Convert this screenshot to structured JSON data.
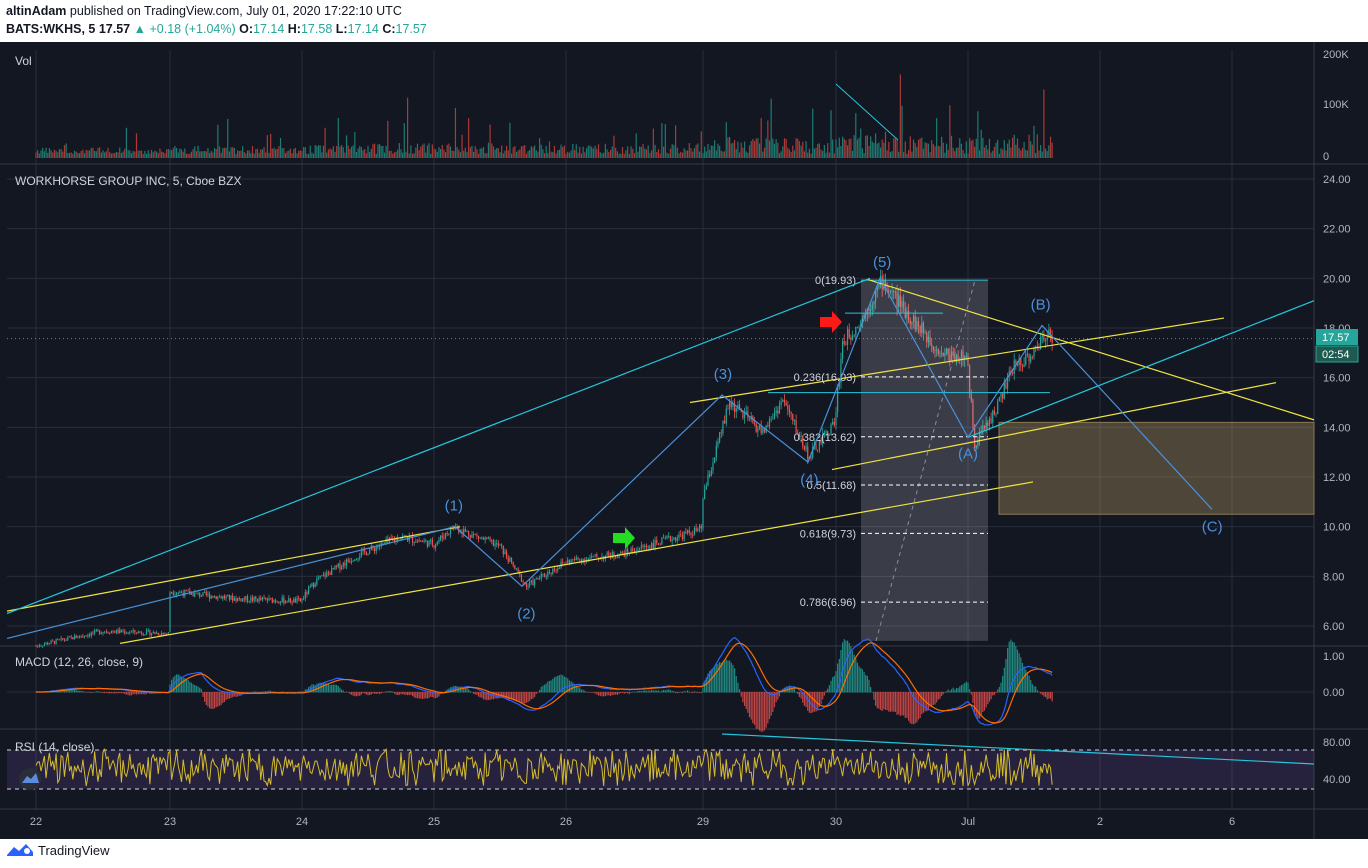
{
  "header": {
    "author": "altinAdam",
    "published_text": "published on TradingView.com, July 01, 2020 17:22:10 UTC",
    "symbol": "BATS:WKHS, 5",
    "last": "17.57",
    "change": "+0.18 (+1.04%)",
    "open_label": "O:",
    "open": "17.14",
    "high_label": "H:",
    "high": "17.58",
    "low_label": "L:",
    "low": "17.14",
    "close_label": "C:",
    "close": "17.57"
  },
  "panes": {
    "volume_title": "Vol",
    "volume_ticks": [
      "200K",
      "100K",
      "0"
    ],
    "price_title": "WORKHORSE GROUP INC, 5, Cboe BZX",
    "macd_title": "MACD (12, 26, close, 9)",
    "macd_ticks": [
      "1.00",
      "0.00"
    ],
    "rsi_title": "RSI (14, close)",
    "rsi_ticks": [
      "80.00",
      "40.00"
    ]
  },
  "price_label": "17.57",
  "countdown_label": "02:54",
  "footer": {
    "brand": "TradingView"
  },
  "colors": {
    "background": "#131722",
    "up": "#26a69a",
    "down": "#ef5350",
    "channel_yellow": "#f0e442",
    "channel_cyan": "#26c6da",
    "wave": "#4a90d9",
    "rsi_line": "#d4bc2c",
    "macd_line": "#2962ff",
    "signal_line": "#ff6d00"
  },
  "chart_data": {
    "type": "candlestick",
    "title": "WORKHORSE GROUP INC, 5, Cboe BZX",
    "x_tick_labels": [
      "22",
      "23",
      "24",
      "25",
      "26",
      "29",
      "30",
      "Jul",
      "2",
      "6"
    ],
    "y_ticks": [
      6,
      8,
      10,
      12,
      14,
      16,
      18,
      20,
      22,
      24
    ],
    "ylim": [
      5.2,
      24.6
    ],
    "last_price": 17.57,
    "anchor_prices": [
      {
        "day": 0.0,
        "price": 5.2
      },
      {
        "day": 0.5,
        "price": 5.8
      },
      {
        "day": 0.99,
        "price": 5.7
      },
      {
        "day": 1.0,
        "price": 7.4
      },
      {
        "day": 1.5,
        "price": 7.1
      },
      {
        "day": 1.99,
        "price": 7.0
      },
      {
        "day": 2.1,
        "price": 7.8
      },
      {
        "day": 2.4,
        "price": 8.8
      },
      {
        "day": 2.75,
        "price": 9.6
      },
      {
        "day": 3.0,
        "price": 9.3
      },
      {
        "day": 3.15,
        "price": 10.0
      },
      {
        "day": 3.5,
        "price": 9.2
      },
      {
        "day": 3.7,
        "price": 7.6
      },
      {
        "day": 4.0,
        "price": 8.6
      },
      {
        "day": 4.4,
        "price": 8.9
      },
      {
        "day": 4.7,
        "price": 9.4
      },
      {
        "day": 4.99,
        "price": 9.9
      },
      {
        "day": 5.0,
        "price": 11.2
      },
      {
        "day": 5.2,
        "price": 15.0
      },
      {
        "day": 5.45,
        "price": 13.8
      },
      {
        "day": 5.6,
        "price": 15.1
      },
      {
        "day": 5.8,
        "price": 12.8
      },
      {
        "day": 5.99,
        "price": 14.2
      },
      {
        "day": 6.05,
        "price": 17.4
      },
      {
        "day": 6.2,
        "price": 18.4
      },
      {
        "day": 6.35,
        "price": 19.9
      },
      {
        "day": 6.6,
        "price": 18.2
      },
      {
        "day": 6.8,
        "price": 17.0
      },
      {
        "day": 6.99,
        "price": 16.8
      },
      {
        "day": 7.05,
        "price": 13.4
      },
      {
        "day": 7.2,
        "price": 14.6
      },
      {
        "day": 7.35,
        "price": 16.5
      },
      {
        "day": 7.5,
        "price": 17.0
      },
      {
        "day": 7.6,
        "price": 17.9
      },
      {
        "day": 7.65,
        "price": 17.57
      }
    ],
    "wave_labels": [
      {
        "text": "(1)",
        "day": 3.15,
        "price": 10.65
      },
      {
        "text": "(2)",
        "day": 3.7,
        "price": 6.3
      },
      {
        "text": "(3)",
        "day": 5.15,
        "price": 15.95
      },
      {
        "text": "(4)",
        "day": 5.8,
        "price": 11.7
      },
      {
        "text": "(5)",
        "day": 6.35,
        "price": 20.45
      },
      {
        "text": "(A)",
        "day": 7.0,
        "price": 12.75
      },
      {
        "text": "(B)",
        "day": 7.55,
        "price": 18.75
      },
      {
        "text": "(C)",
        "day": 8.85,
        "price": 9.8
      }
    ],
    "fib_levels": [
      {
        "ratio": "0",
        "price": 19.93
      },
      {
        "ratio": "0.236",
        "price": 16.03
      },
      {
        "ratio": "0.382",
        "price": 13.62
      },
      {
        "ratio": "0.5",
        "price": 11.68
      },
      {
        "ratio": "0.618",
        "price": 9.73
      },
      {
        "ratio": "0.786",
        "price": 6.96
      }
    ],
    "target_zone": {
      "price_top": 14.2,
      "price_bottom": 10.5
    },
    "volume_ylim": [
      0,
      210000
    ],
    "macd_ylim": [
      -1.5,
      1.6
    ],
    "rsi_ylim": [
      20,
      90
    ],
    "rsi_bands": [
      70,
      30
    ]
  }
}
